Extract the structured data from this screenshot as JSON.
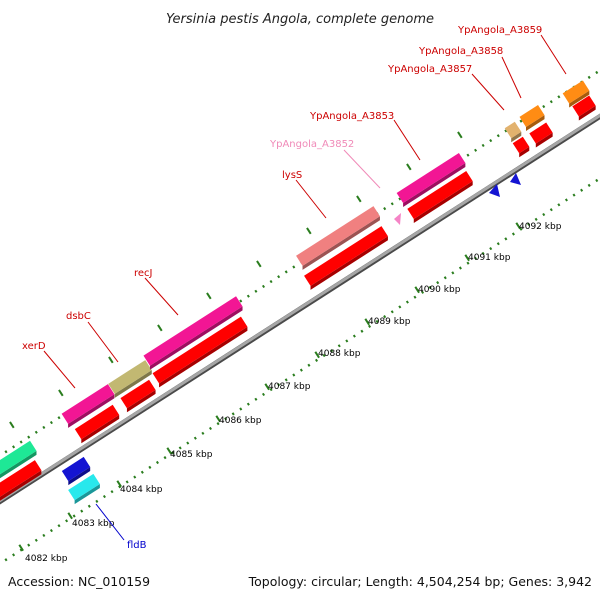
{
  "map": {
    "title": "Yersinia pestis Angola, complete genome",
    "accession": "Accession: NC_010159",
    "summary": "Topology: circular; Length: 4,504,254 bp; Genes: 3,942",
    "colors": {
      "backbone": "#8c8c8c",
      "backbone_edge": "#5a5a5a",
      "tick": "#2a7d1e",
      "label_red": "#cc0000",
      "label_pink": "#f08ab8",
      "label_blue": "#0000cc"
    },
    "scale_ticks": [
      {
        "label": "4082 kbp",
        "kb": 4082
      },
      {
        "label": "4083 kbp",
        "kb": 4083
      },
      {
        "label": "4084 kbp",
        "kb": 4084
      },
      {
        "label": "4085 kbp",
        "kb": 4085
      },
      {
        "label": "4086 kbp",
        "kb": 4086
      },
      {
        "label": "4087 kbp",
        "kb": 4087
      },
      {
        "label": "4088 kbp",
        "kb": 4088
      },
      {
        "label": "4089 kbp",
        "kb": 4089
      },
      {
        "label": "4090 kbp",
        "kb": 4090
      },
      {
        "label": "4091 kbp",
        "kb": 4091
      },
      {
        "label": "4092 kbp",
        "kb": 4092
      }
    ],
    "gene_labels": [
      {
        "text": "xerD",
        "color": "#cc0000"
      },
      {
        "text": "dsbC",
        "color": "#cc0000"
      },
      {
        "text": "recJ",
        "color": "#cc0000"
      },
      {
        "text": "lysS",
        "color": "#cc0000"
      },
      {
        "text": "YpAngola_A3852",
        "color": "#f08ab8"
      },
      {
        "text": "YpAngola_A3853",
        "color": "#cc0000"
      },
      {
        "text": "YpAngola_A3857",
        "color": "#cc0000"
      },
      {
        "text": "YpAngola_A3858",
        "color": "#cc0000"
      },
      {
        "text": "YpAngola_A3859",
        "color": "#cc0000"
      },
      {
        "text": "fldB",
        "color": "#0000cc"
      }
    ],
    "feature_colors": {
      "cds_red": "#ff0000",
      "gene_magenta": "#f21694",
      "gene_olive": "#c2b872",
      "gene_salmon": "#f08080",
      "gene_green": "#1ee896",
      "gene_blue": "#1414d2",
      "gene_cyan": "#28e8ec",
      "gene_orange": "#ff8c14",
      "gene_tan": "#e2b26e",
      "gene_pink": "#f584c6"
    }
  }
}
